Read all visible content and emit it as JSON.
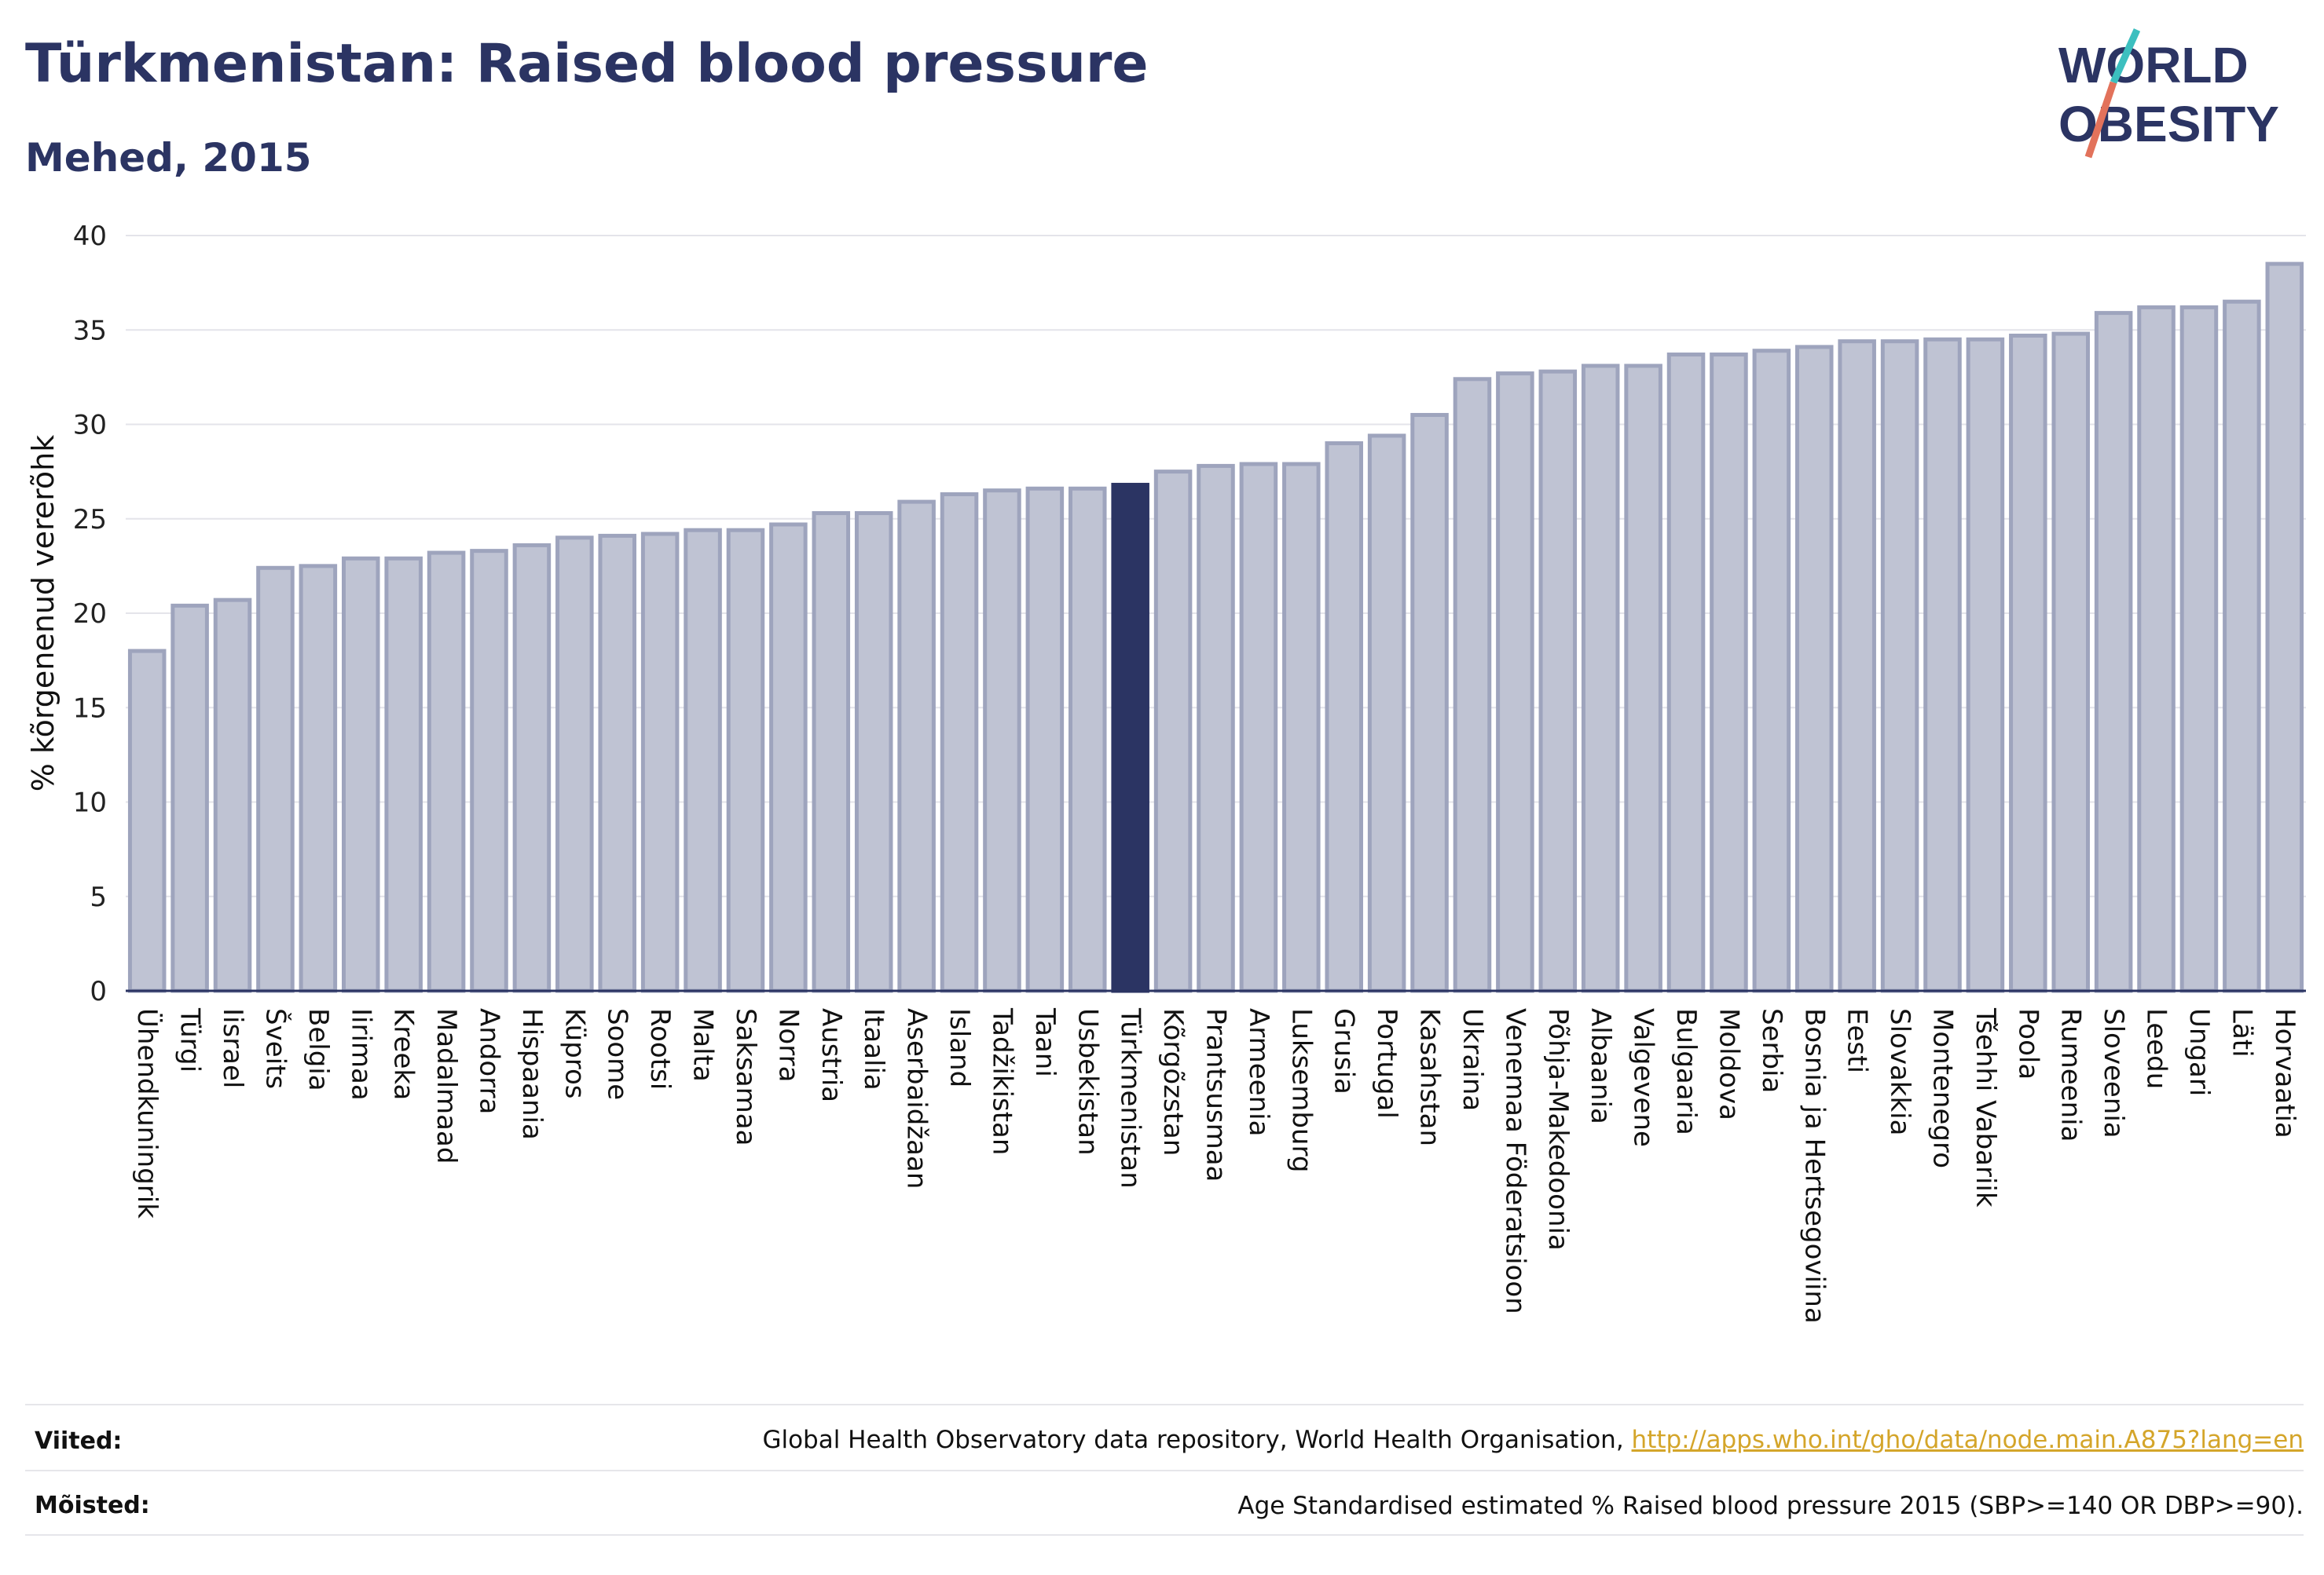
{
  "header": {
    "title": "Türkmenistan: Raised blood pressure",
    "subtitle": "Mehed, 2015"
  },
  "logo": {
    "line1": "WORLD",
    "line2": "OBESITY",
    "color_text": "#2b3463",
    "color_slash_teal": "#3cbfbf",
    "color_slash_coral": "#e2725b"
  },
  "chart_data": {
    "type": "bar",
    "ylabel": "% kõrgenenud vererõhk",
    "xlabel": "",
    "ylim": [
      0,
      40
    ],
    "yticks": [
      0,
      5,
      10,
      15,
      20,
      25,
      30,
      35,
      40
    ],
    "grid": true,
    "highlight": "Türkmenistan",
    "colors": {
      "bar": "#bfc3d3",
      "bar_edge": "#9ea4bd",
      "highlight": "#2b3463"
    },
    "categories": [
      "Ühendkuningrik",
      "Türgi",
      "Iisrael",
      "Šveits",
      "Belgia",
      "Iirimaa",
      "Kreeka",
      "Madalmaad",
      "Andorra",
      "Hispaania",
      "Küpros",
      "Soome",
      "Rootsi",
      "Malta",
      "Saksamaa",
      "Norra",
      "Austria",
      "Itaalia",
      "Aserbaidžaan",
      "Island",
      "Tadžikistan",
      "Taani",
      "Usbekistan",
      "Türkmenistan",
      "Kõrgõzstan",
      "Prantsusmaa",
      "Armeenia",
      "Luksemburg",
      "Grusia",
      "Portugal",
      "Kasahstan",
      "Ukraina",
      "Venemaa Föderatsioon",
      "Põhja-Makedoonia",
      "Albaania",
      "Valgevene",
      "Bulgaaria",
      "Moldova",
      "Serbia",
      "Bosnia ja Hertsegoviina",
      "Eesti",
      "Slovakkia",
      "Montenegro",
      "Tšehhi Vabariik",
      "Poola",
      "Rumeenia",
      "Sloveenia",
      "Leedu",
      "Ungari",
      "Läti",
      "Horvaatia"
    ],
    "values": [
      18.0,
      20.4,
      20.7,
      22.4,
      22.5,
      22.9,
      22.9,
      23.2,
      23.3,
      23.6,
      24.0,
      24.1,
      24.2,
      24.4,
      24.4,
      24.7,
      25.3,
      25.3,
      25.9,
      26.3,
      26.5,
      26.6,
      26.6,
      26.8,
      27.5,
      27.8,
      27.9,
      27.9,
      29.0,
      29.4,
      30.5,
      32.4,
      32.7,
      32.8,
      33.1,
      33.1,
      33.7,
      33.7,
      33.9,
      34.1,
      34.4,
      34.4,
      34.5,
      34.5,
      34.7,
      34.8,
      35.9,
      36.2,
      36.2,
      36.5,
      38.5
    ]
  },
  "footer": {
    "refs_label": "Viited:",
    "refs_text": "Global Health Observatory data repository, World Health Organisation, ",
    "refs_link": "http://apps.who.int/gho/data/node.main.A875?lang=en",
    "defs_label": "Mõisted:",
    "defs_text": "Age Standardised estimated % Raised blood pressure 2015 (SBP>=140 OR DBP>=90)."
  }
}
